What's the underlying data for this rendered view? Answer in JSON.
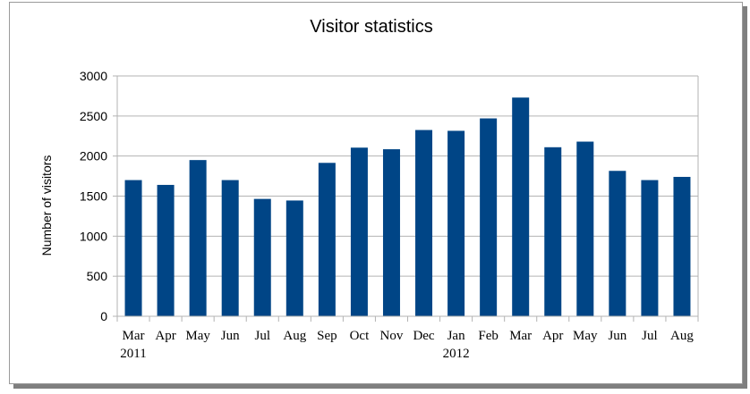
{
  "chart_data": {
    "type": "bar",
    "title": "Visitor statistics",
    "xlabel": "",
    "ylabel": "Number of visitors",
    "categories": [
      "Mar",
      "Apr",
      "May",
      "Jun",
      "Jul",
      "Aug",
      "Sep",
      "Oct",
      "Nov",
      "Dec",
      "Jan",
      "Feb",
      "Mar",
      "Apr",
      "May",
      "Jun",
      "Jul",
      "Aug"
    ],
    "year_labels": [
      "2011",
      "",
      "",
      "",
      "",
      "",
      "",
      "",
      "",
      "",
      "2012",
      "",
      "",
      "",
      "",
      "",
      "",
      ""
    ],
    "values": [
      1700,
      1640,
      1950,
      1700,
      1465,
      1445,
      1915,
      2105,
      2085,
      2325,
      2315,
      2470,
      2730,
      2110,
      2180,
      1815,
      1700,
      1740
    ],
    "ylim": [
      0,
      3000
    ],
    "yticks": [
      "0",
      "500",
      "1000",
      "1500",
      "2000",
      "2500",
      "3000"
    ],
    "grid": true,
    "legend": "none",
    "bar_color": "#004586",
    "grid_color": "#b3b3b3"
  }
}
